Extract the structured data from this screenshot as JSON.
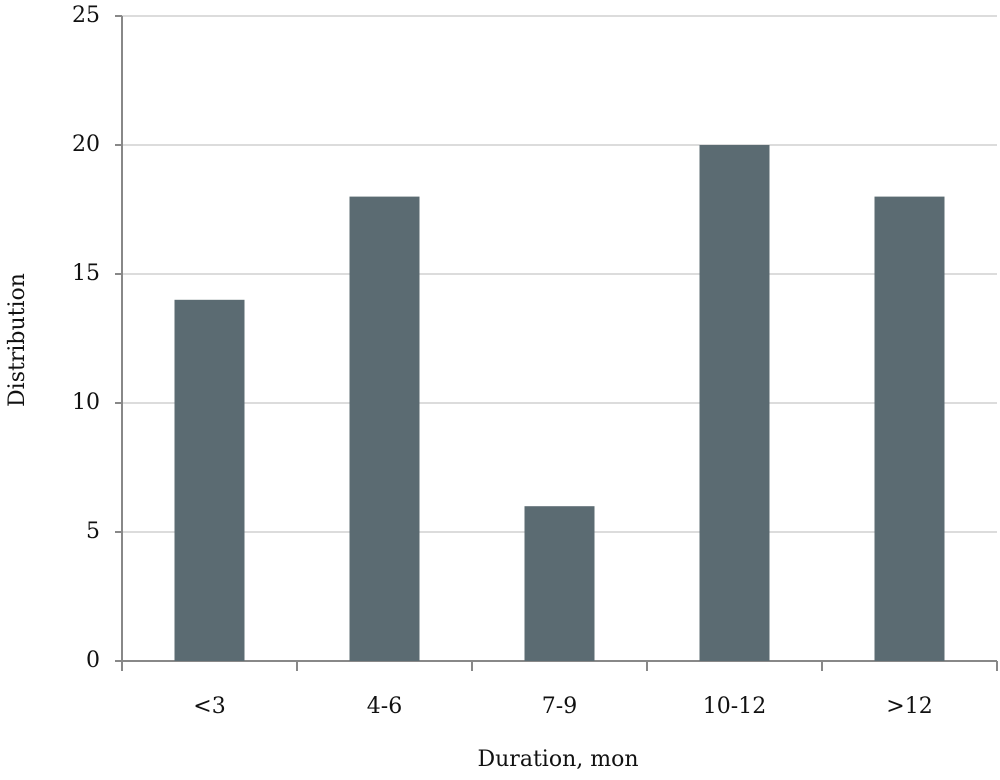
{
  "chart_data": {
    "type": "bar",
    "x_label": "Duration, mon",
    "y_label": "Distribution",
    "categories": [
      "<3",
      "4-6",
      "7-9",
      "10-12",
      ">12"
    ],
    "values": [
      14,
      18,
      6,
      20,
      18
    ],
    "color": "#5b6b72",
    "ylim": [
      0,
      25
    ],
    "yticks": [
      0,
      5,
      10,
      15,
      20,
      25
    ],
    "grid": true
  }
}
